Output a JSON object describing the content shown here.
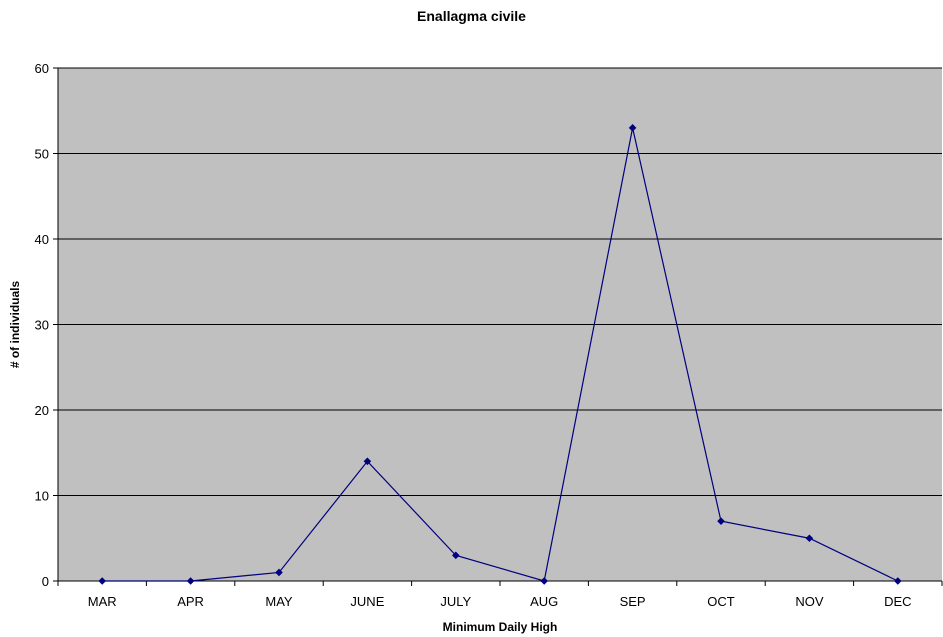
{
  "chart_data": {
    "type": "line",
    "title": "Enallagma civile",
    "xlabel": "Minimum Daily High",
    "ylabel": "# of individuals",
    "categories": [
      "MAR",
      "APR",
      "MAY",
      "JUNE",
      "JULY",
      "AUG",
      "SEP",
      "OCT",
      "NOV",
      "DEC"
    ],
    "series": [
      {
        "values": [
          0,
          0,
          1,
          14,
          3,
          0,
          53,
          7,
          5,
          0
        ]
      }
    ],
    "ylim": [
      0,
      60
    ],
    "yticks": [
      0,
      10,
      20,
      30,
      40,
      50,
      60
    ],
    "grid": "horizontal",
    "legend": "none",
    "colors": {
      "plot_background": "#c0c0c0",
      "line": "#000080",
      "marker": "#000080",
      "gridline": "#000000"
    }
  }
}
